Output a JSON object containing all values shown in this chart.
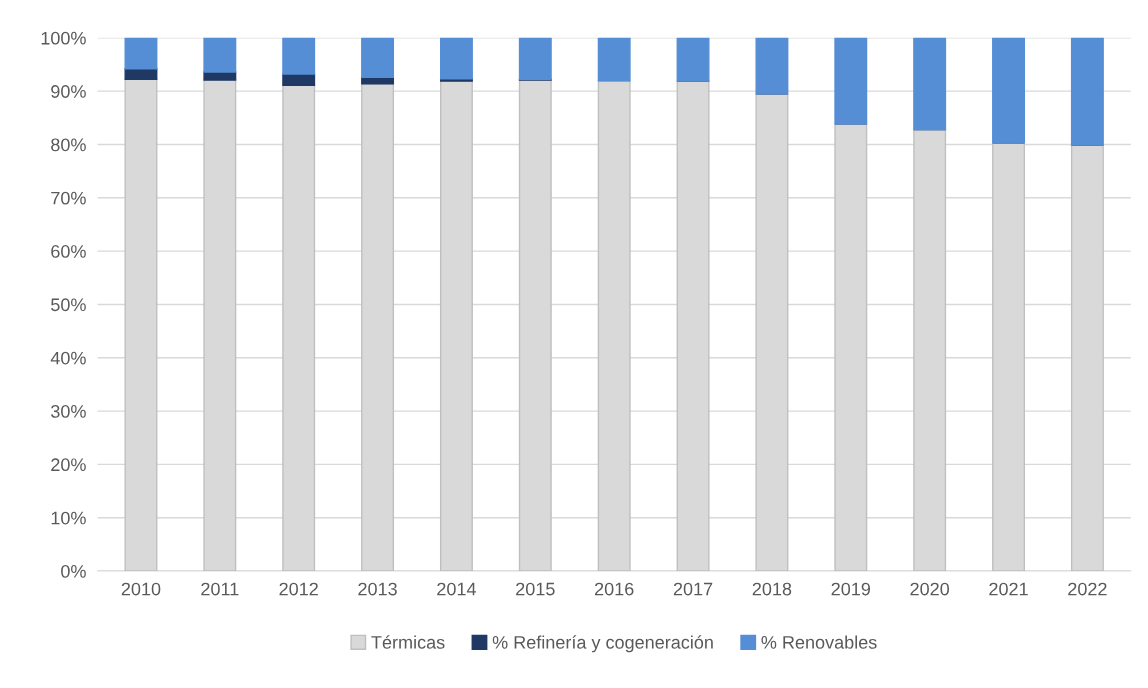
{
  "chart_data": {
    "type": "bar",
    "stacked": true,
    "categories": [
      "2010",
      "2011",
      "2012",
      "2013",
      "2014",
      "2015",
      "2016",
      "2017",
      "2018",
      "2019",
      "2020",
      "2021",
      "2022"
    ],
    "series": [
      {
        "name": "Térmicas",
        "color": "#d9d9d9",
        "values": [
          92.2,
          92.1,
          91.1,
          91.4,
          91.9,
          92.1,
          92.0,
          91.9,
          89.5,
          83.9,
          82.8,
          80.3,
          79.9
        ]
      },
      {
        "name": "% Refinería y cogeneración",
        "color": "#1f3864",
        "values": [
          2.0,
          1.5,
          2.1,
          1.2,
          0.4,
          0.1,
          0,
          0,
          0,
          0,
          0,
          0,
          0
        ]
      },
      {
        "name": "% Renovables",
        "color": "#558ed5",
        "values": [
          5.8,
          6.4,
          6.8,
          7.4,
          7.7,
          7.8,
          8.0,
          8.1,
          10.5,
          16.1,
          17.2,
          19.7,
          20.1
        ]
      }
    ],
    "ylim": [
      0,
      100
    ],
    "yticks": [
      {
        "value": 0,
        "label": "0%"
      },
      {
        "value": 10,
        "label": "10%"
      },
      {
        "value": 20,
        "label": "20%"
      },
      {
        "value": 30,
        "label": "30%"
      },
      {
        "value": 40,
        "label": "40%"
      },
      {
        "value": 50,
        "label": "50%"
      },
      {
        "value": 60,
        "label": "60%"
      },
      {
        "value": 70,
        "label": "70%"
      },
      {
        "value": 80,
        "label": "80%"
      },
      {
        "value": 90,
        "label": "90%"
      },
      {
        "value": 100,
        "label": "100%"
      }
    ],
    "grid": "y",
    "legend": "bottom"
  }
}
